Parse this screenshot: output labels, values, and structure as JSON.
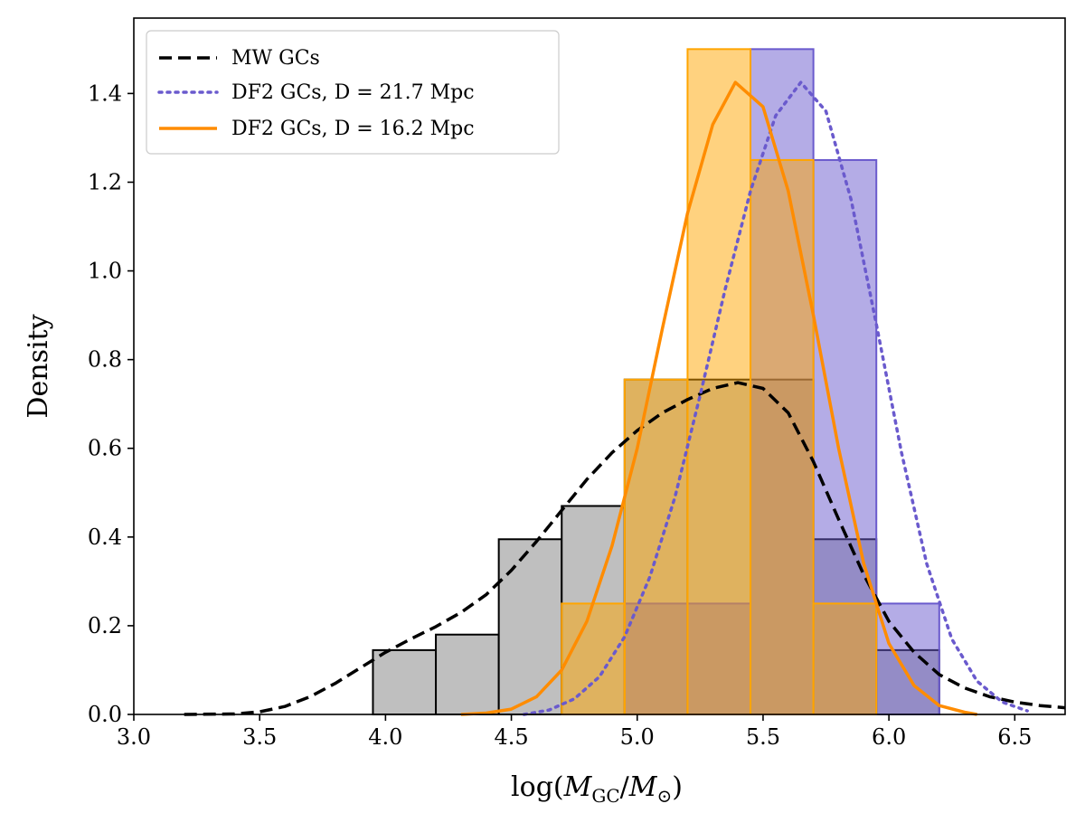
{
  "chart_data": {
    "type": "histogram-with-density-curves",
    "xlabel": "log(M_GC/M_⊙)",
    "ylabel": "Density",
    "xlim": [
      3.0,
      6.7
    ],
    "ylim": [
      0.0,
      1.57
    ],
    "x_ticks": [
      "3.0",
      "3.5",
      "4.0",
      "4.5",
      "5.0",
      "5.5",
      "6.0",
      "6.5"
    ],
    "y_ticks": [
      "0.0",
      "0.2",
      "0.4",
      "0.6",
      "0.8",
      "1.0",
      "1.2",
      "1.4"
    ],
    "grid": false,
    "legend_position": "top-left",
    "legend": [
      {
        "label": "MW GCs",
        "style": "dashed",
        "color": "#000000"
      },
      {
        "label": "DF2 GCs, D = 21.7 Mpc",
        "style": "dotted",
        "color": "#6a5acd"
      },
      {
        "label": "DF2 GCs, D = 16.2 Mpc",
        "style": "solid",
        "color": "#ff8c00"
      }
    ],
    "histograms": [
      {
        "name": "MW GCs",
        "fill": "#bfbfbf",
        "edge": "#000000",
        "opacity": 1.0,
        "bin_width": 0.25,
        "bins": [
          {
            "x0": 3.95,
            "y": 0.145
          },
          {
            "x0": 4.2,
            "y": 0.18
          },
          {
            "x0": 4.45,
            "y": 0.395
          },
          {
            "x0": 4.7,
            "y": 0.47
          },
          {
            "x0": 4.95,
            "y": 0.755
          },
          {
            "x0": 5.2,
            "y": 0.755
          },
          {
            "x0": 5.45,
            "y": 0.755
          },
          {
            "x0": 5.7,
            "y": 0.395
          },
          {
            "x0": 5.95,
            "y": 0.145
          }
        ]
      },
      {
        "name": "DF2 GCs, D = 21.7 Mpc",
        "fill": "#6a5acd",
        "edge": "#6a5acd",
        "opacity": 0.5,
        "bin_width": 0.25,
        "bins": [
          {
            "x0": 4.95,
            "y": 0.25
          },
          {
            "x0": 5.2,
            "y": 0.25
          },
          {
            "x0": 5.45,
            "y": 1.5
          },
          {
            "x0": 5.7,
            "y": 1.25
          },
          {
            "x0": 5.95,
            "y": 0.25
          }
        ]
      },
      {
        "name": "DF2 GCs, D = 16.2 Mpc",
        "fill": "#ffa500",
        "edge": "#ffa500",
        "opacity": 0.5,
        "bin_width": 0.25,
        "bins": [
          {
            "x0": 4.7,
            "y": 0.25
          },
          {
            "x0": 4.95,
            "y": 0.755
          },
          {
            "x0": 5.2,
            "y": 1.5
          },
          {
            "x0": 5.45,
            "y": 1.25
          },
          {
            "x0": 5.7,
            "y": 0.25
          }
        ]
      }
    ],
    "curves": [
      {
        "name": "MW GCs",
        "style": "dashed",
        "color": "#000000",
        "points": [
          [
            3.2,
            0.0
          ],
          [
            3.4,
            0.001
          ],
          [
            3.5,
            0.006
          ],
          [
            3.6,
            0.018
          ],
          [
            3.7,
            0.04
          ],
          [
            3.8,
            0.07
          ],
          [
            3.9,
            0.105
          ],
          [
            4.0,
            0.14
          ],
          [
            4.1,
            0.17
          ],
          [
            4.2,
            0.198
          ],
          [
            4.3,
            0.23
          ],
          [
            4.4,
            0.27
          ],
          [
            4.5,
            0.325
          ],
          [
            4.6,
            0.39
          ],
          [
            4.7,
            0.46
          ],
          [
            4.8,
            0.53
          ],
          [
            4.9,
            0.59
          ],
          [
            5.0,
            0.64
          ],
          [
            5.1,
            0.68
          ],
          [
            5.2,
            0.71
          ],
          [
            5.3,
            0.735
          ],
          [
            5.4,
            0.748
          ],
          [
            5.5,
            0.735
          ],
          [
            5.6,
            0.68
          ],
          [
            5.7,
            0.57
          ],
          [
            5.8,
            0.44
          ],
          [
            5.9,
            0.315
          ],
          [
            6.0,
            0.21
          ],
          [
            6.1,
            0.14
          ],
          [
            6.2,
            0.09
          ],
          [
            6.3,
            0.06
          ],
          [
            6.4,
            0.04
          ],
          [
            6.5,
            0.028
          ],
          [
            6.6,
            0.02
          ],
          [
            6.7,
            0.015
          ]
        ]
      },
      {
        "name": "DF2 GCs, D = 21.7 Mpc",
        "style": "dotted",
        "color": "#6a5acd",
        "points": [
          [
            4.55,
            0.0
          ],
          [
            4.65,
            0.01
          ],
          [
            4.75,
            0.035
          ],
          [
            4.85,
            0.085
          ],
          [
            4.95,
            0.175
          ],
          [
            5.05,
            0.31
          ],
          [
            5.15,
            0.49
          ],
          [
            5.25,
            0.72
          ],
          [
            5.35,
            0.96
          ],
          [
            5.45,
            1.18
          ],
          [
            5.55,
            1.35
          ],
          [
            5.65,
            1.425
          ],
          [
            5.75,
            1.36
          ],
          [
            5.85,
            1.16
          ],
          [
            5.95,
            0.88
          ],
          [
            6.05,
            0.59
          ],
          [
            6.15,
            0.34
          ],
          [
            6.25,
            0.17
          ],
          [
            6.35,
            0.075
          ],
          [
            6.45,
            0.028
          ],
          [
            6.55,
            0.008
          ]
        ]
      },
      {
        "name": "DF2 GCs, D = 16.2 Mpc",
        "style": "solid",
        "color": "#ff8c00",
        "points": [
          [
            4.3,
            0.0
          ],
          [
            4.4,
            0.003
          ],
          [
            4.5,
            0.012
          ],
          [
            4.6,
            0.04
          ],
          [
            4.7,
            0.1
          ],
          [
            4.8,
            0.21
          ],
          [
            4.9,
            0.38
          ],
          [
            5.0,
            0.6
          ],
          [
            5.1,
            0.87
          ],
          [
            5.2,
            1.13
          ],
          [
            5.3,
            1.33
          ],
          [
            5.39,
            1.425
          ],
          [
            5.5,
            1.37
          ],
          [
            5.6,
            1.18
          ],
          [
            5.7,
            0.9
          ],
          [
            5.8,
            0.6
          ],
          [
            5.9,
            0.34
          ],
          [
            6.0,
            0.16
          ],
          [
            6.1,
            0.065
          ],
          [
            6.2,
            0.02
          ],
          [
            6.3,
            0.005
          ],
          [
            6.35,
            0.0
          ]
        ]
      }
    ]
  }
}
